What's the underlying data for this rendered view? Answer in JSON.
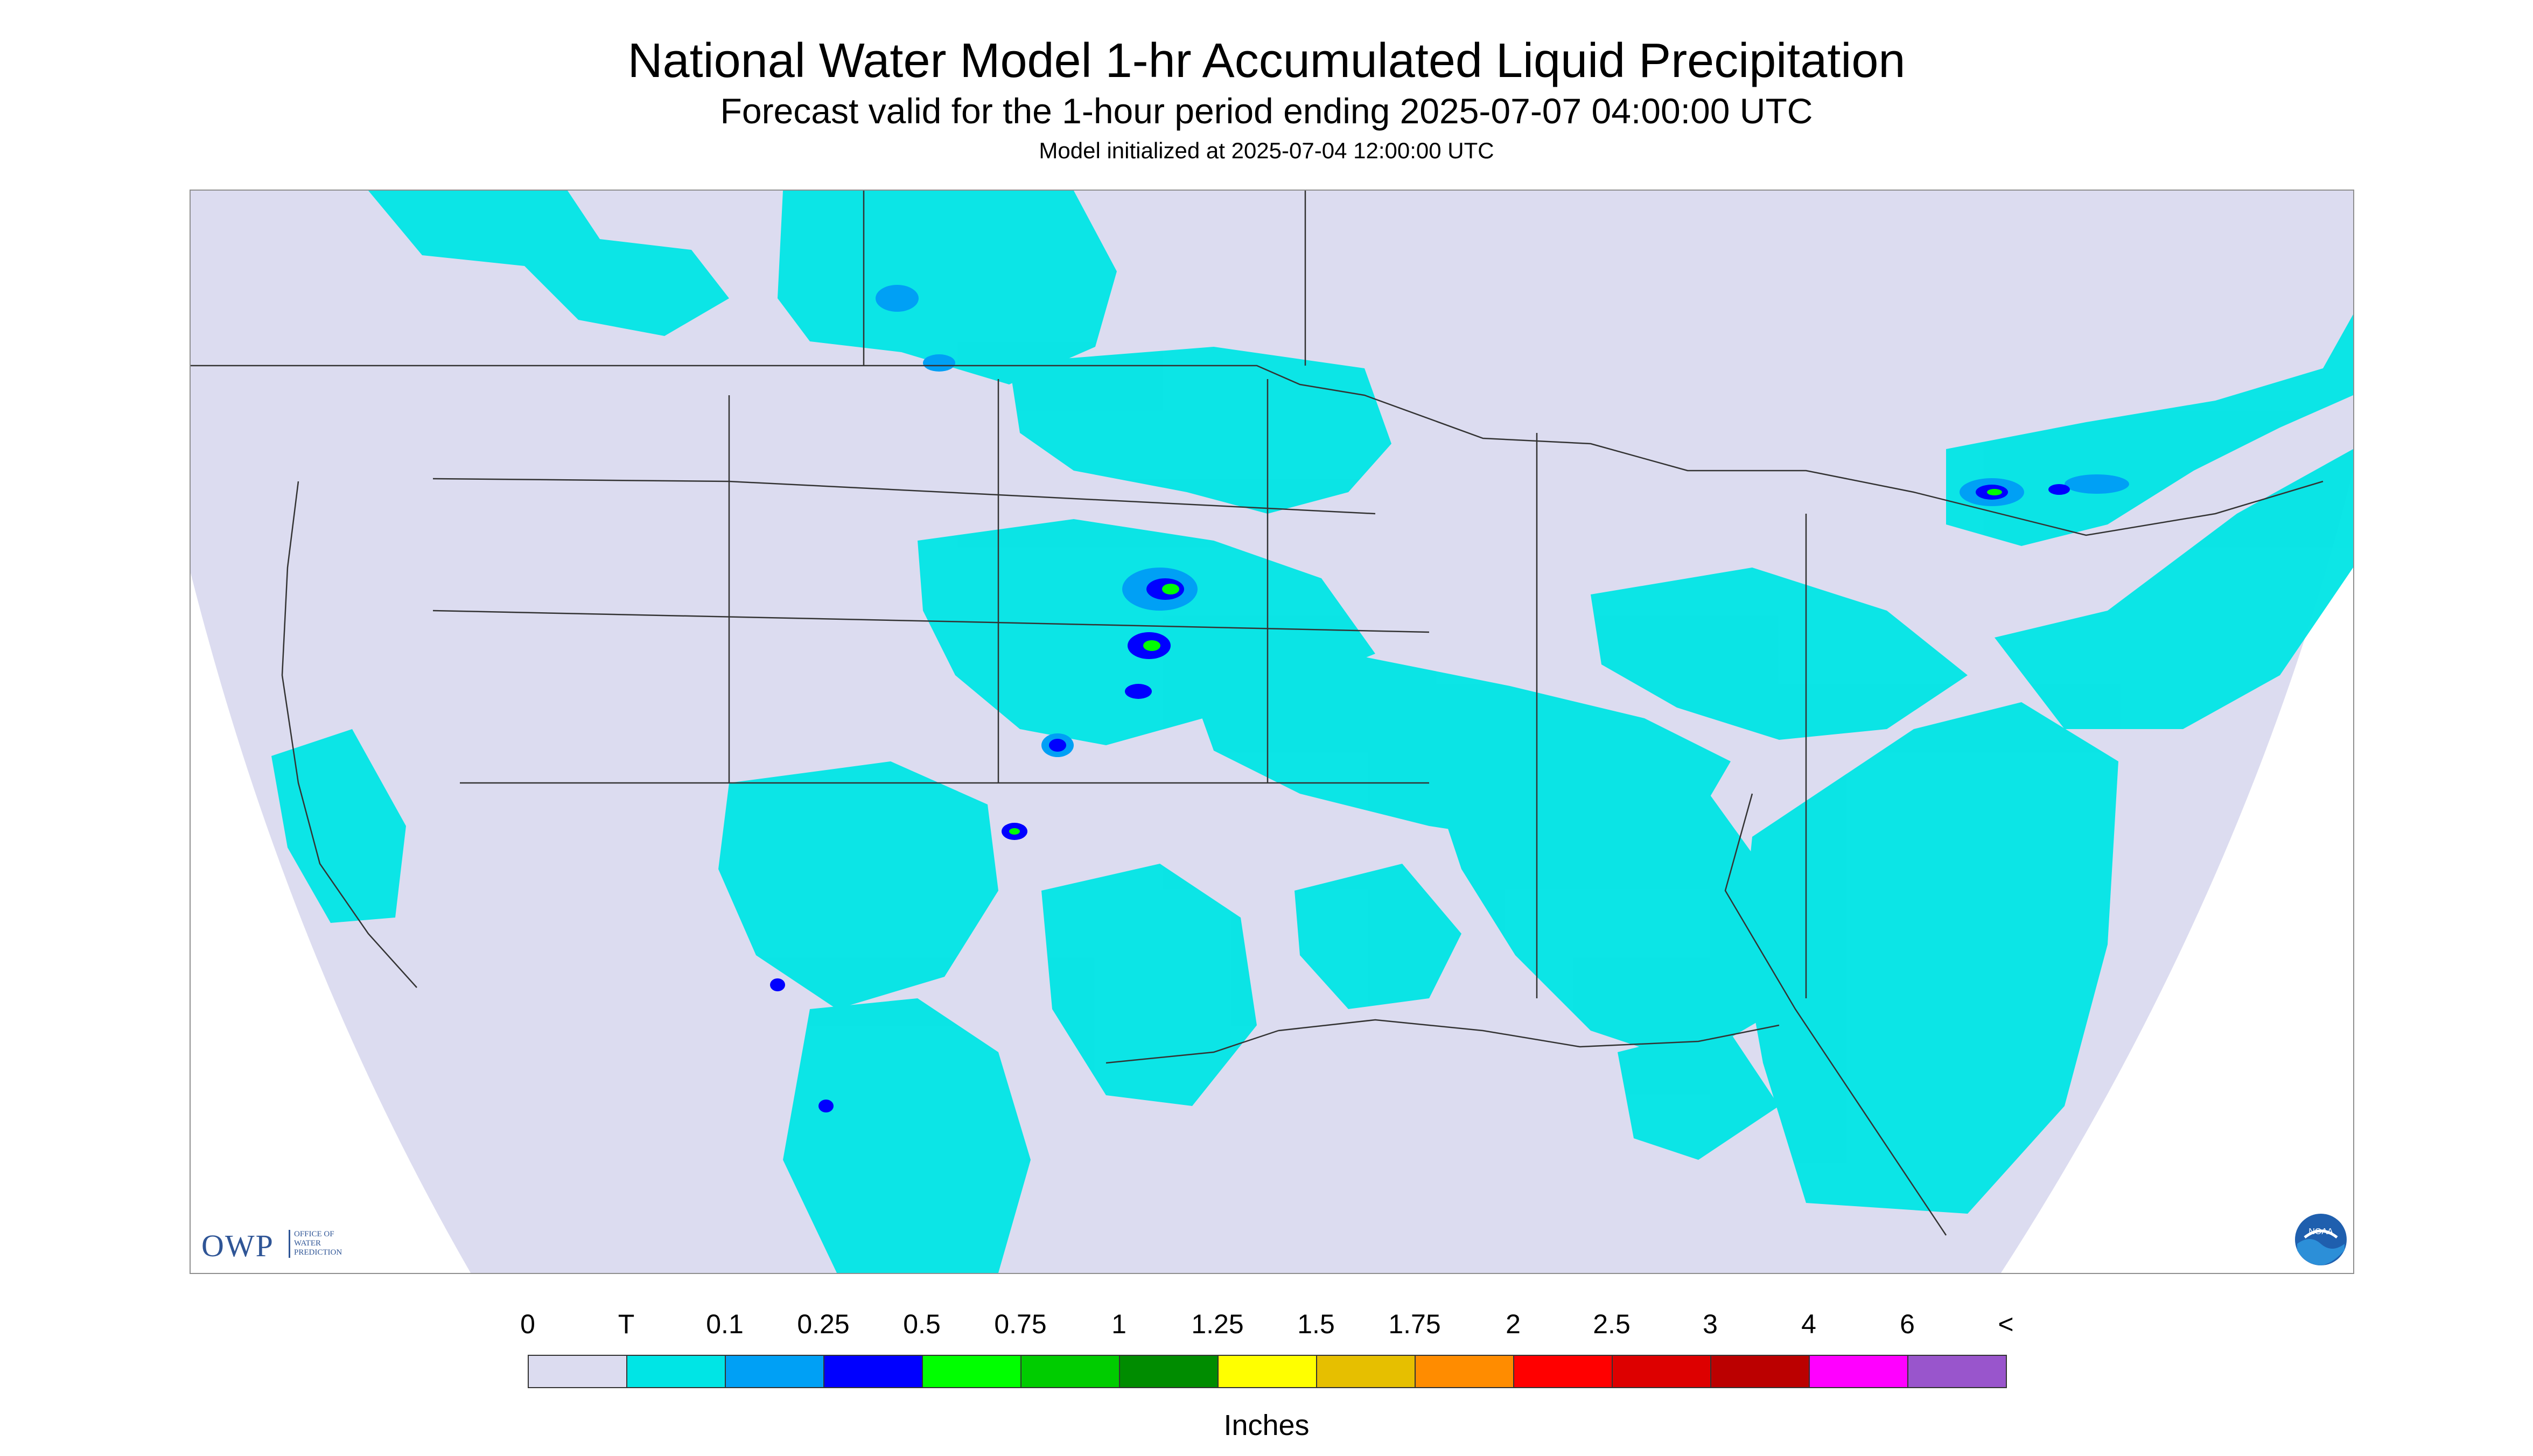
{
  "header": {
    "title": "National Water Model 1-hr Accumulated Liquid Precipitation",
    "subtitle": "Forecast valid for the 1-hour period ending 2025-07-07 04:00:00 UTC",
    "init": "Model initialized at 2025-07-04 12:00:00 UTC"
  },
  "map": {
    "no_data_color": "#dcdcf0",
    "border_color": "#333333"
  },
  "logos": {
    "owp_text": "OWP",
    "owp_sub": "OFFICE OF\nWATER\nPREDICTION",
    "noaa_text": "NOAA"
  },
  "legend": {
    "units": "Inches",
    "labels": [
      "0",
      "T",
      "0.1",
      "0.25",
      "0.5",
      "0.75",
      "1",
      "1.25",
      "1.5",
      "1.75",
      "2",
      "2.5",
      "3",
      "4",
      "6",
      "<"
    ],
    "colors": [
      "#dcdcf0",
      "#00e5e5",
      "#00a0f5",
      "#0000ff",
      "#00ff00",
      "#00cc00",
      "#008c00",
      "#ffff00",
      "#e6bf00",
      "#ff8c00",
      "#ff0000",
      "#dd0000",
      "#bb0000",
      "#ff00ff",
      "#9955cc"
    ]
  }
}
